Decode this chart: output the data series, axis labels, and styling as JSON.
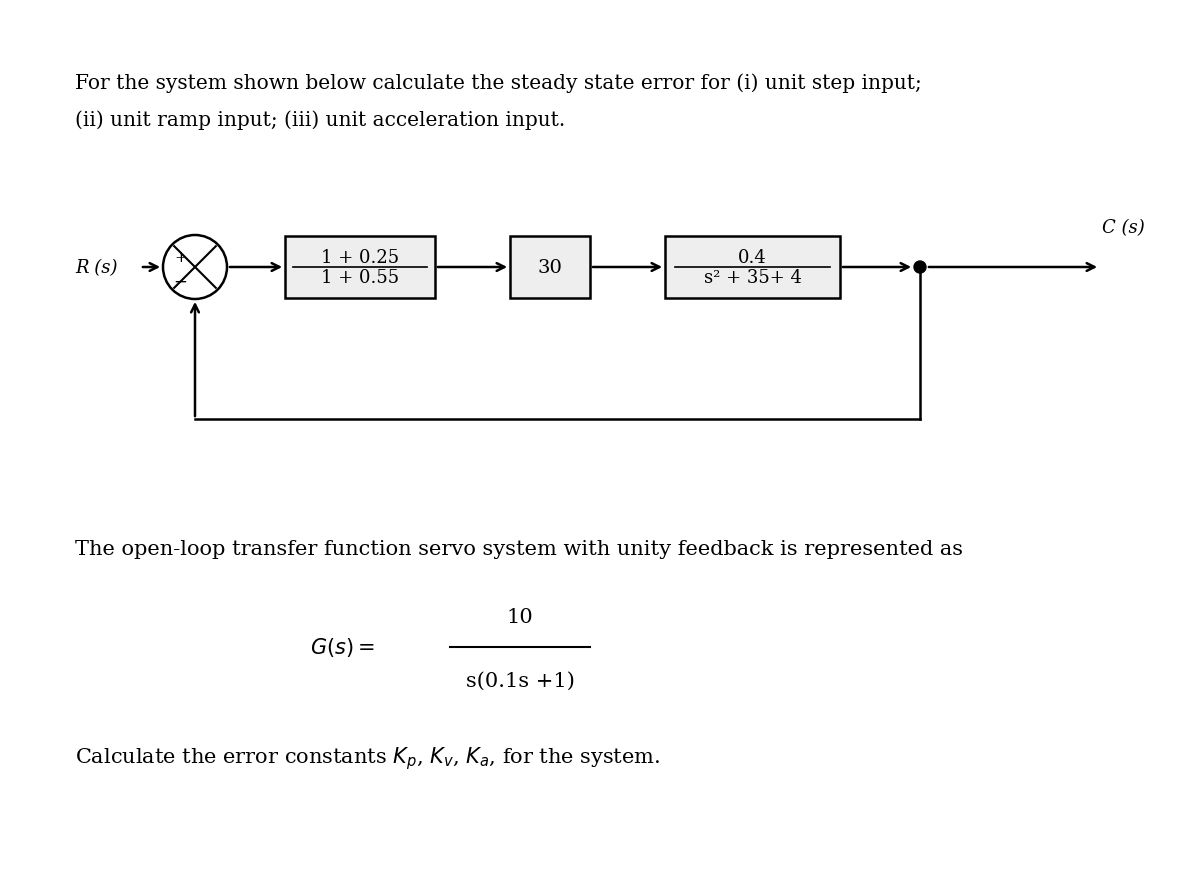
{
  "bg_color": "#ffffff",
  "text_color": "#000000",
  "title_line1": "For the system shown below calculate the steady state error for (i) unit step input;",
  "title_line2": "(ii) unit ramp input; (iii) unit acceleration input.",
  "block1_num": "1 + 0.25",
  "block1_den": "1 + 0.55",
  "block2": "30",
  "block3_num": "0.4",
  "block3_den": "s² + 35+ 4",
  "r_label": "R (s)",
  "c_label": "C (s)",
  "desc_text": "The open-loop transfer function servo system with unity feedback is represented as",
  "gs_num": "10",
  "gs_den": "s(0.1s +1)",
  "font_size_title": 14.5,
  "font_size_block": 13,
  "font_size_label": 13,
  "font_size_desc": 15,
  "font_size_gs": 15,
  "font_size_calc": 15
}
